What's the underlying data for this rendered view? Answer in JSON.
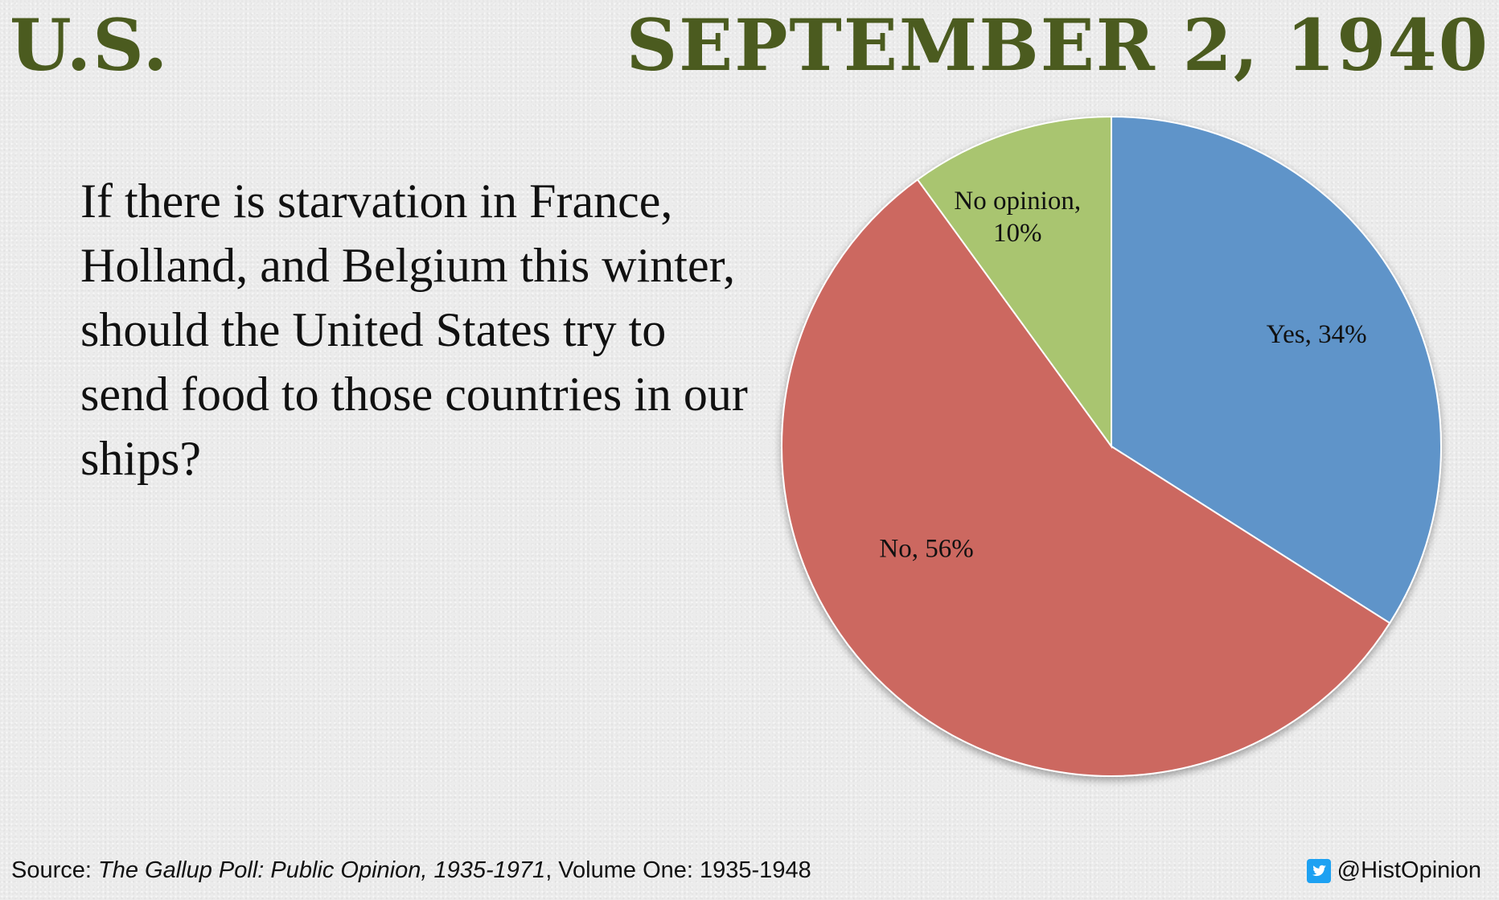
{
  "header": {
    "country": "U.S.",
    "date": "SEPTEMBER 2, 1940",
    "title_color": "#4b5b1f"
  },
  "question": "If there is starvation in France, Holland, and Belgium this winter, should the United States try to send food to those countries in our ships?",
  "chart_data": {
    "type": "pie",
    "slices": [
      {
        "label": "Yes, 34%",
        "value": 34,
        "color": "#5f94c9"
      },
      {
        "label": "No, 56%",
        "value": 56,
        "color": "#cc6761"
      },
      {
        "label": "No opinion, 10%",
        "value": 10,
        "color": "#a9c56f"
      }
    ],
    "start": "12 o'clock",
    "direction": "clockwise"
  },
  "footer": {
    "source_prefix": "Source: ",
    "source_title": "The Gallup Poll: Public Opinion, 1935-1971",
    "source_suffix": ", Volume One: 1935-1948",
    "handle": "@HistOpinion",
    "handle_icon": "twitter-icon",
    "icon_color": "#1da1f2"
  }
}
